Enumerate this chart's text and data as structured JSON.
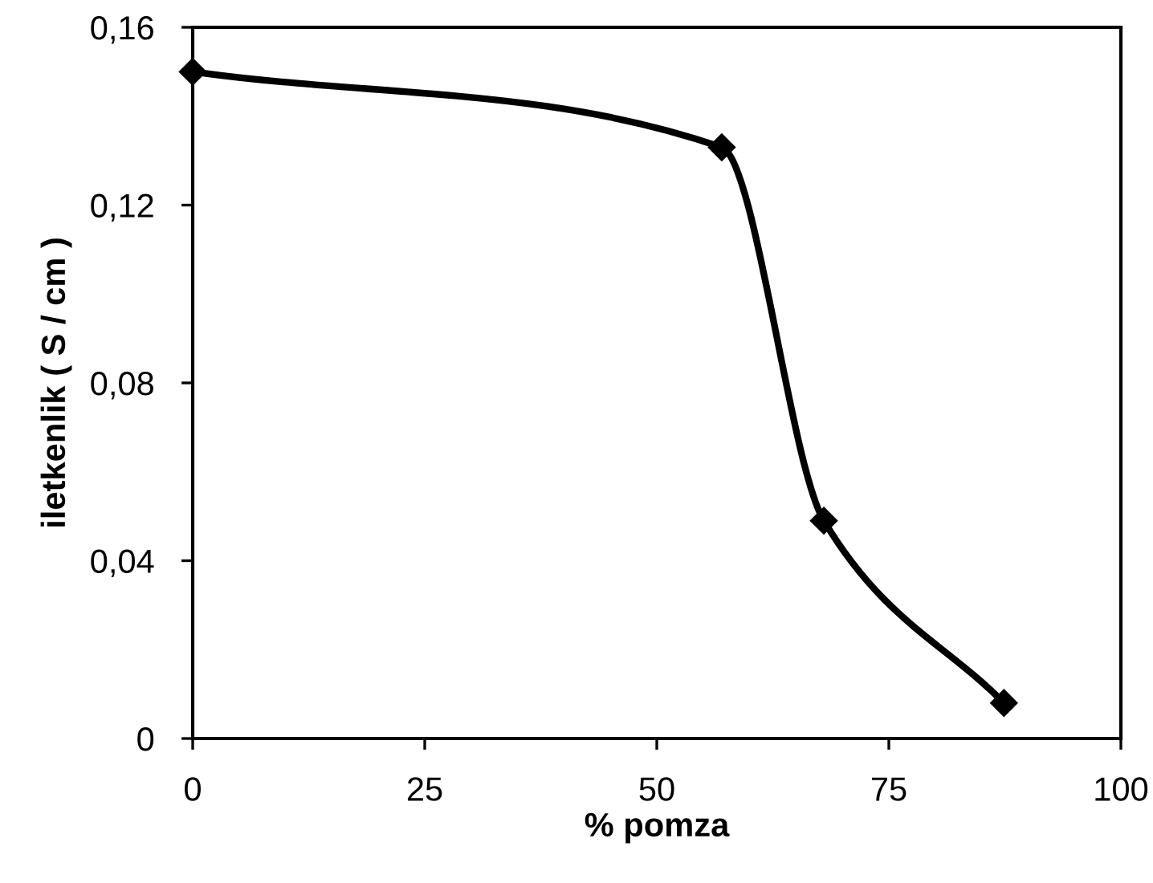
{
  "chart_data": {
    "type": "line",
    "xlabel": "% pomza",
    "ylabel": "iletkenlik ( S / cm )",
    "x": [
      0,
      57,
      68,
      87.4
    ],
    "series": [
      {
        "color": "#000000",
        "values": [
          0.15,
          0.133,
          0.049,
          0.008
        ]
      }
    ],
    "xlim": [
      0,
      100
    ],
    "xticks": [
      0,
      25,
      50,
      75,
      100
    ],
    "ylim": [
      0,
      0.16
    ],
    "yticks": [
      {
        "value": 0,
        "label": "0"
      },
      {
        "value": 0.04,
        "label": "0,04"
      },
      {
        "value": 0.08,
        "label": "0,08"
      },
      {
        "value": 0.12,
        "label": "0,12"
      },
      {
        "value": 0.16,
        "label": "0,16"
      }
    ],
    "grid": false,
    "legend": false,
    "marker": "diamond",
    "line_style": "solid"
  }
}
